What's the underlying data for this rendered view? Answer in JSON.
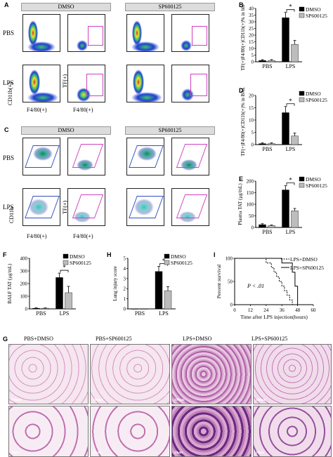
{
  "panels": {
    "A": {
      "letter": "A",
      "col1": "DMSO",
      "col2": "SP600125",
      "row1": "PBS",
      "row2": "LPS",
      "ylab_outer": "CD11b(+)",
      "ylab_inner": "TF(+)",
      "xlab_outer": "F4/80(+)",
      "xlab_inner": "F4/80(+)"
    },
    "C": {
      "letter": "C",
      "col1": "DMSO",
      "col2": "SP600125",
      "row1": "PBS",
      "row2": "LPS",
      "ylab_outer": "CD11b",
      "ylab_inner": "TF(+)",
      "xlab_outer": "F4/80(+)",
      "xlab_inner": "F4/80(+)"
    },
    "G": {
      "letter": "G",
      "labels": [
        "PBS+DMSO",
        "PBS+SP600125",
        "LPS+DMSO",
        "LPS+SP600125"
      ],
      "scale_top": "100μm",
      "scale_bottom": "20μm"
    }
  },
  "colors": {
    "dmso": "#000000",
    "sp": "#bdbdbd",
    "gate": "#d040c0"
  },
  "chart_data": [
    {
      "panel": "B",
      "type": "bar",
      "categories": [
        "PBS",
        "LPS"
      ],
      "series": [
        {
          "name": "DMSO",
          "values": [
            1,
            33
          ],
          "err": [
            0.6,
            4
          ]
        },
        {
          "name": "SP600125",
          "values": [
            1,
            13
          ],
          "err": [
            0.6,
            3
          ]
        }
      ],
      "ylabel": "TF(+)F4/80(+)CD11b(+)% in blood",
      "ylim": [
        0,
        40
      ],
      "yticks": [
        "0",
        "5",
        "10",
        "15",
        "20",
        "25",
        "30",
        "35",
        "40"
      ],
      "sig": "*"
    },
    {
      "panel": "D",
      "type": "bar",
      "categories": [
        "PBS",
        "LPS"
      ],
      "series": [
        {
          "name": "DMSO",
          "values": [
            0.4,
            13
          ],
          "err": [
            0.3,
            2.5
          ]
        },
        {
          "name": "SP600125",
          "values": [
            0.4,
            3.5
          ],
          "err": [
            0.3,
            1.2
          ]
        }
      ],
      "ylabel": "TF(+)F4/80(+)CD11b(+)% in BALF",
      "ylim": [
        0,
        20
      ],
      "yticks": [
        "0",
        "5",
        "10",
        "15",
        "20"
      ],
      "sig": "*"
    },
    {
      "panel": "E",
      "type": "bar",
      "categories": [
        "PBS",
        "LPS"
      ],
      "series": [
        {
          "name": "DMSO",
          "values": [
            12,
            162
          ],
          "err": [
            4,
            18
          ]
        },
        {
          "name": "SP600125",
          "values": [
            8,
            72
          ],
          "err": [
            3,
            10
          ]
        }
      ],
      "ylabel": "Plasma TAT (μg/mL)",
      "ylim": [
        0,
        200
      ],
      "yticks": [
        "0",
        "50",
        "100",
        "150",
        "200"
      ],
      "sig": "*"
    },
    {
      "panel": "F",
      "type": "bar",
      "categories": [
        "PBS",
        "LPS"
      ],
      "series": [
        {
          "name": "DMSO",
          "values": [
            5,
            248
          ],
          "err": [
            3,
            35
          ]
        },
        {
          "name": "SP600125",
          "values": [
            5,
            128
          ],
          "err": [
            3,
            50
          ]
        }
      ],
      "ylabel": "BALF TAT (μg/mL)",
      "ylim": [
        0,
        400
      ],
      "yticks": [
        "0",
        "100",
        "200",
        "300",
        "400"
      ],
      "sig": "*"
    },
    {
      "panel": "H",
      "type": "bar",
      "categories": [
        "PBS",
        "LPS"
      ],
      "series": [
        {
          "name": "DMSO",
          "values": [
            0,
            3.7
          ],
          "err": [
            0,
            0.5
          ]
        },
        {
          "name": "SP600125",
          "values": [
            0,
            1.8
          ],
          "err": [
            0,
            0.4
          ]
        }
      ],
      "ylabel": "Lung injury score",
      "ylim": [
        0,
        5
      ],
      "yticks": [
        "0",
        "1",
        "2",
        "3",
        "4",
        "5"
      ],
      "sig": "*"
    },
    {
      "panel": "I",
      "type": "line",
      "xlabel": "Time after LPS injection(hours)",
      "ylabel": "Percent survival",
      "xlim": [
        0,
        60
      ],
      "ylim": [
        0,
        100
      ],
      "xticks": [
        "0",
        "12",
        "24",
        "36",
        "48",
        "60"
      ],
      "yticks": [
        "0",
        "50",
        "100"
      ],
      "annotation": "P < .01",
      "series": [
        {
          "name": "LPS+DMSO",
          "style": "dashed",
          "points": [
            [
              0,
              100
            ],
            [
              24,
              100
            ],
            [
              24,
              90
            ],
            [
              28,
              90
            ],
            [
              28,
              80
            ],
            [
              30,
              80
            ],
            [
              30,
              70
            ],
            [
              32,
              70
            ],
            [
              32,
              60
            ],
            [
              34,
              60
            ],
            [
              34,
              50
            ],
            [
              36,
              50
            ],
            [
              36,
              40
            ],
            [
              38,
              40
            ],
            [
              38,
              30
            ],
            [
              40,
              30
            ],
            [
              40,
              20
            ],
            [
              42,
              20
            ],
            [
              42,
              10
            ],
            [
              44,
              10
            ],
            [
              44,
              0
            ],
            [
              46,
              0
            ]
          ]
        },
        {
          "name": "LPS+SP600125",
          "style": "solid",
          "points": [
            [
              0,
              100
            ],
            [
              36,
              100
            ],
            [
              36,
              90
            ],
            [
              44,
              90
            ],
            [
              44,
              70
            ],
            [
              46,
              70
            ],
            [
              46,
              40
            ],
            [
              48,
              40
            ],
            [
              48,
              0
            ],
            [
              50,
              0
            ]
          ]
        }
      ]
    }
  ]
}
